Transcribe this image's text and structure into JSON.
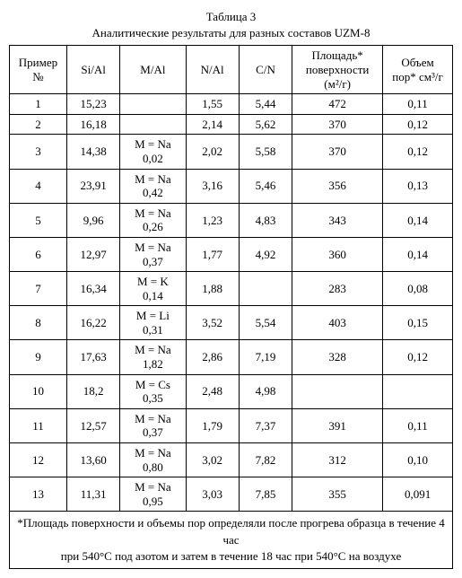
{
  "table": {
    "caption1": "Таблица 3",
    "caption2": "Аналитические результаты для разных составов UZM-8",
    "headers": {
      "example": "Пример №",
      "sial": "Si/Al",
      "mal": "M/Al",
      "nal": "N/Al",
      "cn": "C/N",
      "surface_l1": "Площадь*",
      "surface_l2": "поверхности",
      "surface_l3": "(м²/г)",
      "pore_l1": "Объем",
      "pore_l2": "пор* см³/г"
    },
    "rows": [
      {
        "n": "1",
        "sial": "15,23",
        "mal_l1": "",
        "mal_l2": "",
        "nal": "1,55",
        "cn": "5,44",
        "surf": "472",
        "pore": "0,11"
      },
      {
        "n": "2",
        "sial": "16,18",
        "mal_l1": "",
        "mal_l2": "",
        "nal": "2,14",
        "cn": "5,62",
        "surf": "370",
        "pore": "0,12"
      },
      {
        "n": "3",
        "sial": "14,38",
        "mal_l1": "M = Na",
        "mal_l2": "0,02",
        "nal": "2,02",
        "cn": "5,58",
        "surf": "370",
        "pore": "0,12"
      },
      {
        "n": "4",
        "sial": "23,91",
        "mal_l1": "M = Na",
        "mal_l2": "0,42",
        "nal": "3,16",
        "cn": "5,46",
        "surf": "356",
        "pore": "0,13"
      },
      {
        "n": "5",
        "sial": "9,96",
        "mal_l1": "M = Na",
        "mal_l2": "0,26",
        "nal": "1,23",
        "cn": "4,83",
        "surf": "343",
        "pore": "0,14"
      },
      {
        "n": "6",
        "sial": "12,97",
        "mal_l1": "M = Na",
        "mal_l2": "0,37",
        "nal": "1,77",
        "cn": "4,92",
        "surf": "360",
        "pore": "0,14"
      },
      {
        "n": "7",
        "sial": "16,34",
        "mal_l1": "M = K",
        "mal_l2": "0,14",
        "nal": "1,88",
        "cn": "",
        "surf": "283",
        "pore": "0,08"
      },
      {
        "n": "8",
        "sial": "16,22",
        "mal_l1": "M = Li",
        "mal_l2": "0,31",
        "nal": "3,52",
        "cn": "5,54",
        "surf": "403",
        "pore": "0,15"
      },
      {
        "n": "9",
        "sial": "17,63",
        "mal_l1": "M = Na",
        "mal_l2": "1,82",
        "nal": "2,86",
        "cn": "7,19",
        "surf": "328",
        "pore": "0,12"
      },
      {
        "n": "10",
        "sial": "18,2",
        "mal_l1": "M = Cs",
        "mal_l2": "0,35",
        "nal": "2,48",
        "cn": "4,98",
        "surf": "",
        "pore": ""
      },
      {
        "n": "11",
        "sial": "12,57",
        "mal_l1": "M = Na",
        "mal_l2": "0,37",
        "nal": "1,79",
        "cn": "7,37",
        "surf": "391",
        "pore": "0,11"
      },
      {
        "n": "12",
        "sial": "13,60",
        "mal_l1": "M = Na",
        "mal_l2": "0,80",
        "nal": "3,02",
        "cn": "7,82",
        "surf": "312",
        "pore": "0,10"
      },
      {
        "n": "13",
        "sial": "11,31",
        "mal_l1": "M = Na",
        "mal_l2": "0,95",
        "nal": "3,03",
        "cn": "7,85",
        "surf": "355",
        "pore": "0,091"
      }
    ],
    "footnote_l1": "*Площадь поверхности и объемы пор определяли после прогрева образца в течение 4 час",
    "footnote_l2": "при 540°С под азотом и затем в течение 18 час при 540°С на воздухе"
  }
}
